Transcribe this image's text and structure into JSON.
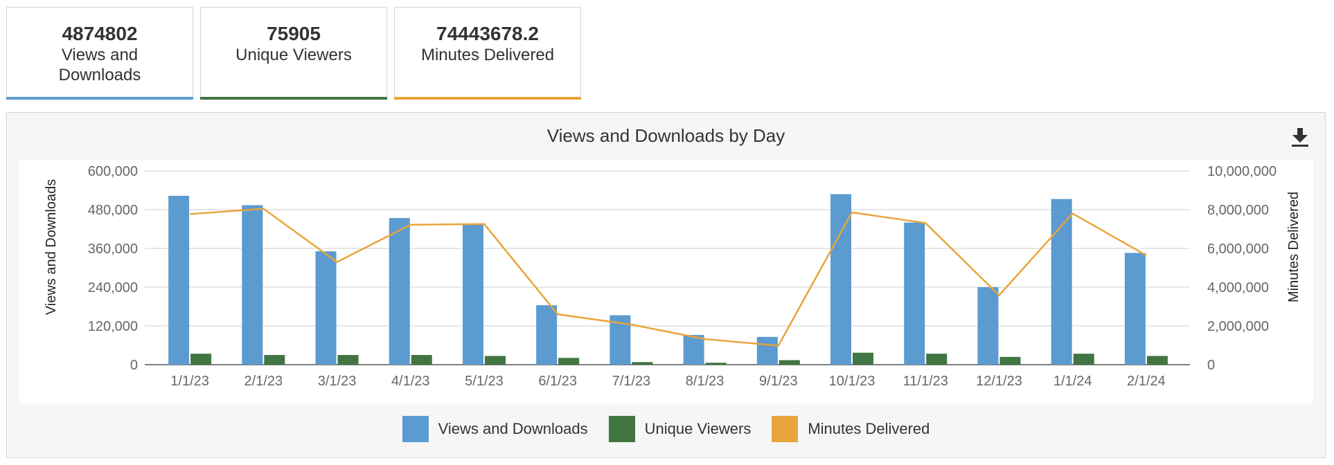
{
  "stats": [
    {
      "value": "4874802",
      "label": "Views and Downloads",
      "color": "#5b9bd0"
    },
    {
      "value": "75905",
      "label": "Unique Viewers",
      "color": "#417542"
    },
    {
      "value": "74443678.2",
      "label": "Minutes Delivered",
      "color": "#e9a43b"
    }
  ],
  "chart_data": {
    "type": "bar",
    "title": "Views and Downloads by Day",
    "categories": [
      "1/1/23",
      "2/1/23",
      "3/1/23",
      "4/1/23",
      "5/1/23",
      "6/1/23",
      "7/1/23",
      "8/1/23",
      "9/1/23",
      "10/1/23",
      "11/1/23",
      "12/1/23",
      "1/1/24",
      "2/1/24"
    ],
    "ylabel": "Views and Downloads",
    "y2label": "Minutes Delivered",
    "ylim": [
      0,
      600000
    ],
    "y2lim": [
      0,
      10000000
    ],
    "yticks": [
      "0",
      "120,000",
      "240,000",
      "360,000",
      "480,000",
      "600,000"
    ],
    "y2ticks": [
      "0",
      "2,000,000",
      "4,000,000",
      "6,000,000",
      "8,000,000",
      "10,000,000"
    ],
    "grid": true,
    "legend_position": "bottom",
    "series": [
      {
        "name": "Views and Downloads",
        "type": "bar",
        "axis": "left",
        "color": "#5b9bd0",
        "values": [
          523000,
          494000,
          351000,
          454000,
          433000,
          184000,
          153000,
          92000,
          86000,
          528000,
          440000,
          240000,
          513000,
          346000
        ]
      },
      {
        "name": "Unique Viewers",
        "type": "bar",
        "axis": "left",
        "color": "#417542",
        "values": [
          34000,
          30000,
          30000,
          30000,
          27000,
          21000,
          8000,
          6000,
          14000,
          37000,
          34000,
          24000,
          34000,
          27000
        ]
      },
      {
        "name": "Minutes Delivered",
        "type": "line",
        "axis": "right",
        "color": "#e9a43b",
        "values": [
          7770000,
          8050000,
          5300000,
          7220000,
          7260000,
          2600000,
          2070000,
          1320000,
          980000,
          7860000,
          7310000,
          3580000,
          7800000,
          5640000
        ]
      }
    ]
  }
}
